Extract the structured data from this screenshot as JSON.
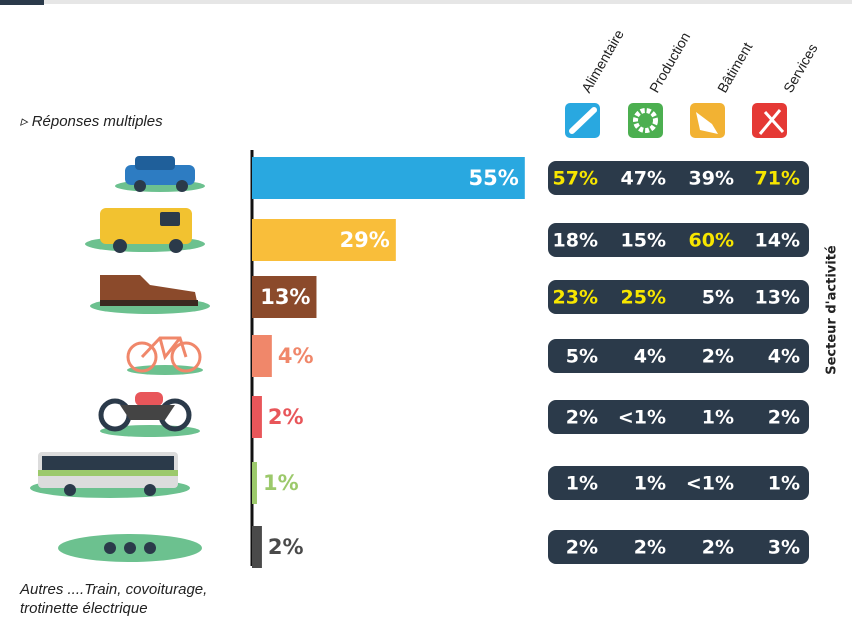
{
  "chart_data": {
    "type": "bar",
    "note": "▹ Réponses multiples",
    "footnote": [
      "Autres ....Train, covoiturage,",
      "trotinette électrique"
    ],
    "values": [
      55,
      29,
      13,
      4,
      2,
      1,
      2
    ],
    "value_labels": [
      "55%",
      "29%",
      "13%",
      "4%",
      "2%",
      "1%",
      "2%"
    ],
    "colors": [
      "#29a8e0",
      "#f9be3a",
      "#8b4a2b",
      "#f0876a",
      "#e8565a",
      "#9cc96b",
      "#4a4a4a"
    ]
  },
  "table": {
    "title": "Secteur d'activité",
    "columns": [
      "Alimentaire",
      "Production",
      "Bâtiment",
      "Services"
    ],
    "rows": [
      [
        "57%",
        "47%",
        "39%",
        "71%"
      ],
      [
        "18%",
        "15%",
        "60%",
        "14%"
      ],
      [
        "23%",
        "25%",
        "5%",
        "13%"
      ],
      [
        "5%",
        "4%",
        "2%",
        "4%"
      ],
      [
        "2%",
        "<1%",
        "1%",
        "2%"
      ],
      [
        "1%",
        "1%",
        "<1%",
        "1%"
      ],
      [
        "2%",
        "2%",
        "2%",
        "3%"
      ]
    ],
    "highlight": [
      [
        true,
        false,
        false,
        true
      ],
      [
        false,
        false,
        true,
        false
      ],
      [
        true,
        true,
        false,
        false
      ],
      [
        false,
        false,
        false,
        false
      ],
      [
        false,
        false,
        false,
        false
      ],
      [
        false,
        false,
        false,
        false
      ],
      [
        false,
        false,
        false,
        false
      ]
    ],
    "highlight_color": "#f7e600",
    "pill_color": "#2b3a4a"
  }
}
